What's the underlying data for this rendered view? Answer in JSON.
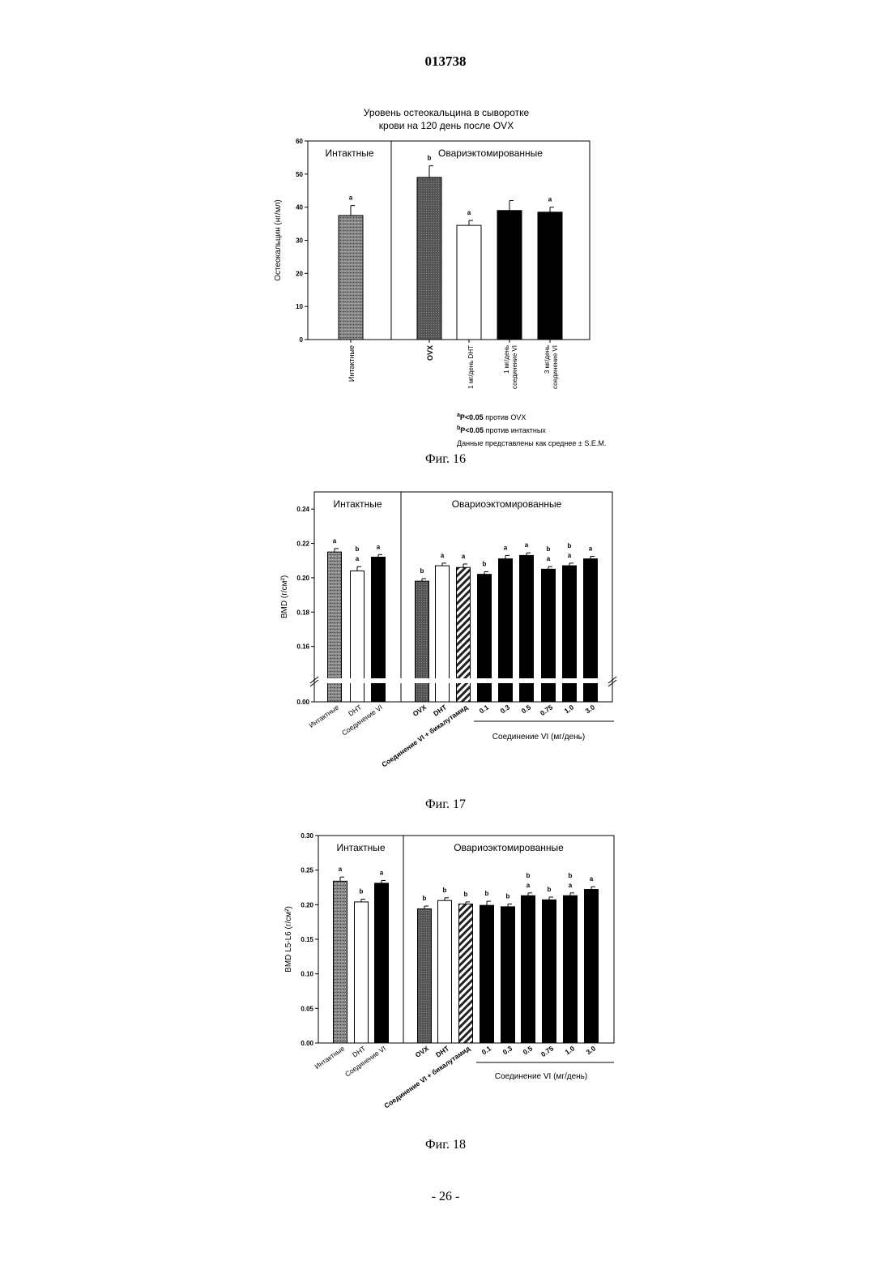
{
  "page": {
    "doc_number": "013738",
    "page_number": "- 26 -",
    "captions": [
      "Фиг. 16",
      "Фиг. 17",
      "Фиг. 18"
    ],
    "notes": {
      "a_sup": "a",
      "a_p": "P<0.05",
      "a_text": "против OVX",
      "b_sup": "b",
      "b_p": "P<0.05",
      "b_text": "против интактных",
      "data_text": "Данные представлены как среднее ± S.E.M."
    }
  },
  "colors": {
    "stipple": "#6b6b6b",
    "ovx": "#5a5a5a",
    "white": "#ffffff",
    "black": "#000000",
    "hatch": "#333333"
  },
  "chart_data": [
    {
      "type": "bar",
      "title_lines": [
        "Уровень остеокальцина в сыворотке",
        "крови на 120 день после OVX"
      ],
      "ylabel": "Остеокальцин (нг/мл)",
      "ylim": [
        0,
        60
      ],
      "yticks": [
        "0",
        "10",
        "20",
        "30",
        "40",
        "50",
        "60"
      ],
      "groups": [
        "Интактные",
        "Овариэктомированные"
      ],
      "categories": [
        "Интактные",
        "OVX",
        "1 мг/день DHT",
        "1 мг/день соединение VI",
        "3 мг/день соединение VI"
      ],
      "values": [
        37.5,
        49,
        34.5,
        39,
        38.5
      ],
      "errors": [
        3,
        3.5,
        1.5,
        3,
        1.5
      ],
      "sig": [
        "a",
        "b",
        "a",
        "",
        "a"
      ],
      "fills": [
        "stipple",
        "ovx",
        "white",
        "black",
        "black"
      ]
    },
    {
      "type": "bar",
      "ylabel": "BMD (г/см²)",
      "ylim": [
        0.14,
        0.25
      ],
      "yticks": [
        "0.00",
        "0.16",
        "0.18",
        "0.20",
        "0.22",
        "0.24"
      ],
      "axis_break": true,
      "groups": [
        "Интактные",
        "Овариоэктомированные"
      ],
      "categories": [
        "Интактные",
        "DHT",
        "Соединение VI",
        "OVX",
        "DHT",
        "Соединение VI + бикалутамид",
        "0.1",
        "0.3",
        "0.5",
        "0.75",
        "1.0",
        "3.0"
      ],
      "values": [
        0.215,
        0.204,
        0.212,
        0.198,
        0.207,
        0.206,
        0.202,
        0.211,
        0.213,
        0.205,
        0.207,
        0.211
      ],
      "errors": [
        0.002,
        0.0025,
        0.0015,
        0.0015,
        0.0015,
        0.002,
        0.0015,
        0.002,
        0.0015,
        0.0015,
        0.0015,
        0.0015
      ],
      "sig": [
        "a",
        "b\na",
        "a",
        "b",
        "a",
        "a",
        "b",
        "a",
        "a",
        "b\na",
        "b\na",
        "a"
      ],
      "fills": [
        "stipple",
        "white",
        "black",
        "ovx",
        "white",
        "hatch",
        "black",
        "black",
        "black",
        "black",
        "black",
        "black"
      ],
      "dose_label": "Соединение VI (мг/день)"
    },
    {
      "type": "bar",
      "ylabel": "BMD L5-L6 (г/см²)",
      "ylim": [
        0,
        0.3
      ],
      "yticks": [
        "0.00",
        "0.05",
        "0.10",
        "0.15",
        "0.20",
        "0.25",
        "0.30"
      ],
      "groups": [
        "Интактные",
        "Овариоэктомированные"
      ],
      "categories": [
        "Интактные",
        "DHT",
        "Соединение VI",
        "OVX",
        "DHT",
        "Соединение VI + бикалутамид",
        "0.1",
        "0.3",
        "0.5",
        "0.75",
        "1.0",
        "3.0"
      ],
      "values": [
        0.234,
        0.204,
        0.231,
        0.194,
        0.206,
        0.201,
        0.199,
        0.197,
        0.213,
        0.207,
        0.213,
        0.222
      ],
      "errors": [
        0.006,
        0.004,
        0.004,
        0.004,
        0.004,
        0.003,
        0.006,
        0.004,
        0.004,
        0.004,
        0.004,
        0.004
      ],
      "sig": [
        "a",
        "b",
        "a",
        "b",
        "b",
        "b",
        "b",
        "b",
        "b\na",
        "b",
        "b\na",
        "a"
      ],
      "fills": [
        "stipple",
        "white",
        "black",
        "ovx",
        "white",
        "hatch",
        "black",
        "black",
        "black",
        "black",
        "black",
        "black"
      ],
      "dose_label": "Соединение VI (мг/день)"
    }
  ]
}
